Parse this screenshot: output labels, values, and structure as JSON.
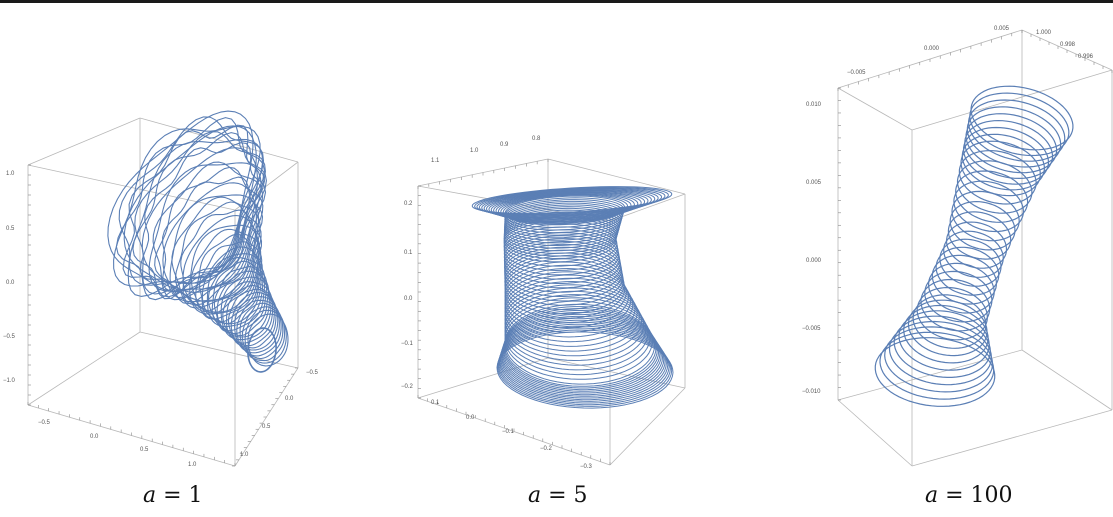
{
  "panels": [
    {
      "id": "a1",
      "caption_var": "a",
      "caption_eq": " = ",
      "caption_val": "1",
      "axis_left": [
        "1.0",
        "0.5",
        "0.0",
        "−0.5",
        "−1.0"
      ],
      "axis_bottom": [
        "−0.5",
        "0.0",
        "0.5",
        "1.0"
      ],
      "axis_right": [
        "−0.5",
        "0.0",
        "0.5",
        "1.0"
      ],
      "axis_top": []
    },
    {
      "id": "a5",
      "caption_var": "a",
      "caption_eq": " = ",
      "caption_val": "5",
      "axis_left": [
        "0.2",
        "0.1",
        "0.0",
        "−0.1",
        "−0.2"
      ],
      "axis_bottom": [
        "0.1",
        "0.0",
        "−0.1",
        "−0.2",
        "−0.3"
      ],
      "axis_right": [],
      "axis_top": [
        "1.1",
        "1.0",
        "0.9",
        "0.8"
      ]
    },
    {
      "id": "a100",
      "caption_var": "a",
      "caption_eq": " = ",
      "caption_val": "100",
      "axis_left": [
        "0.010",
        "0.005",
        "0.000",
        "−0.005",
        "−0.010"
      ],
      "axis_bottom": [],
      "axis_right": [],
      "axis_top": [
        "−0.005",
        "0.000",
        "0.005",
        "1.000",
        "0.998",
        "0.996"
      ]
    }
  ]
}
